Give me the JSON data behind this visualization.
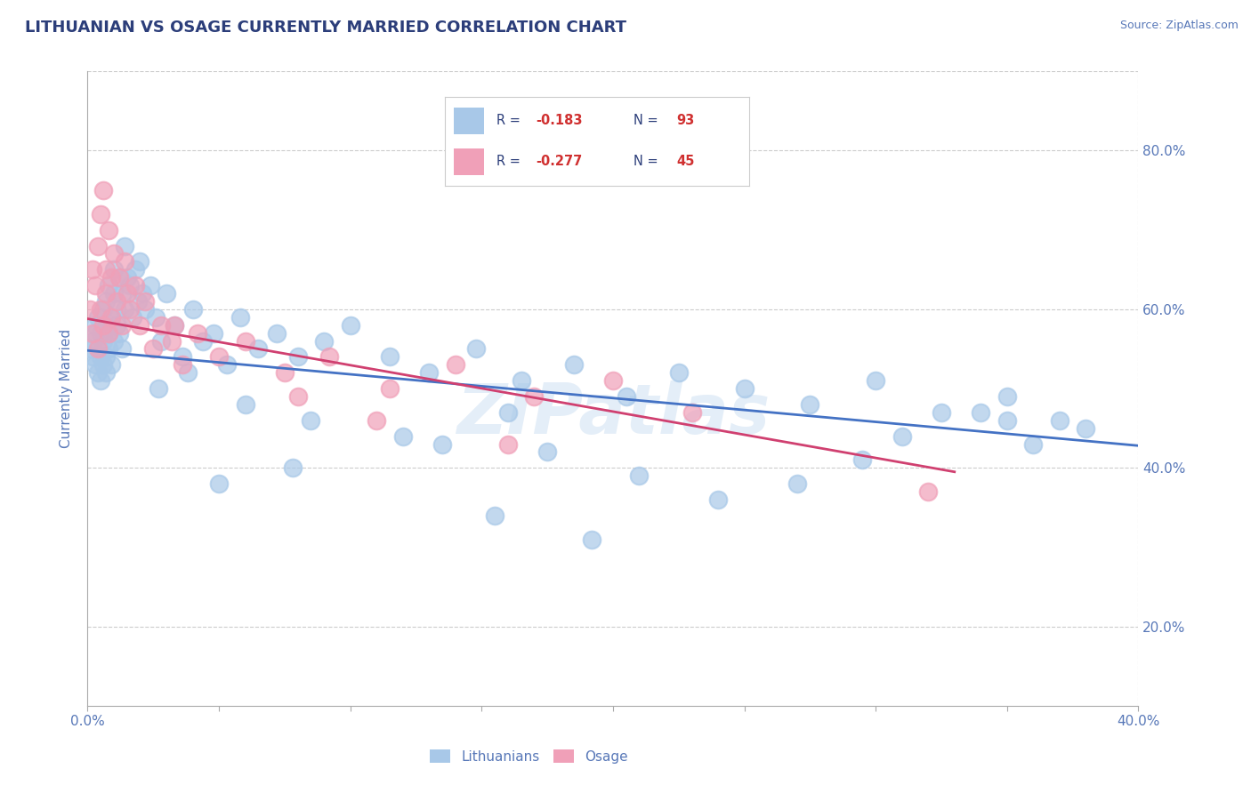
{
  "title": "LITHUANIAN VS OSAGE CURRENTLY MARRIED CORRELATION CHART",
  "source_text": "Source: ZipAtlas.com",
  "ylabel": "Currently Married",
  "xlim": [
    0.0,
    0.4
  ],
  "ylim": [
    0.1,
    0.9
  ],
  "yticks": [
    0.2,
    0.4,
    0.6,
    0.8
  ],
  "xticks": [
    0.0,
    0.05,
    0.1,
    0.15,
    0.2,
    0.25,
    0.3,
    0.35,
    0.4
  ],
  "xtick_labels": [
    "0.0%",
    "",
    "",
    "",
    "",
    "",
    "",
    "",
    "40.0%"
  ],
  "ytick_labels": [
    "20.0%",
    "40.0%",
    "60.0%",
    "80.0%"
  ],
  "blue_R": -0.183,
  "blue_N": 93,
  "pink_R": -0.277,
  "pink_N": 45,
  "blue_color": "#a8c8e8",
  "pink_color": "#f0a0b8",
  "blue_line_color": "#4472c4",
  "pink_line_color": "#d04070",
  "title_color": "#2c3e7a",
  "axis_color": "#5878b8",
  "legend_R_color": "#d03030",
  "legend_N_color": "#2c3e7a",
  "watermark": "ZIPatlas",
  "blue_x": [
    0.001,
    0.002,
    0.002,
    0.003,
    0.003,
    0.003,
    0.004,
    0.004,
    0.004,
    0.005,
    0.005,
    0.005,
    0.006,
    0.006,
    0.006,
    0.007,
    0.007,
    0.007,
    0.007,
    0.008,
    0.008,
    0.008,
    0.009,
    0.009,
    0.01,
    0.01,
    0.01,
    0.011,
    0.011,
    0.012,
    0.012,
    0.013,
    0.013,
    0.014,
    0.014,
    0.015,
    0.016,
    0.017,
    0.018,
    0.019,
    0.02,
    0.021,
    0.022,
    0.024,
    0.026,
    0.028,
    0.03,
    0.033,
    0.036,
    0.04,
    0.044,
    0.048,
    0.053,
    0.058,
    0.065,
    0.072,
    0.08,
    0.09,
    0.1,
    0.115,
    0.13,
    0.148,
    0.165,
    0.185,
    0.205,
    0.225,
    0.25,
    0.275,
    0.3,
    0.325,
    0.35,
    0.37,
    0.31,
    0.34,
    0.36,
    0.38,
    0.295,
    0.27,
    0.24,
    0.175,
    0.21,
    0.135,
    0.155,
    0.06,
    0.085,
    0.038,
    0.027,
    0.192,
    0.078,
    0.12,
    0.05,
    0.16,
    0.35
  ],
  "blue_y": [
    0.55,
    0.56,
    0.54,
    0.57,
    0.53,
    0.58,
    0.55,
    0.52,
    0.59,
    0.54,
    0.51,
    0.57,
    0.53,
    0.6,
    0.56,
    0.54,
    0.58,
    0.52,
    0.61,
    0.55,
    0.63,
    0.57,
    0.59,
    0.53,
    0.62,
    0.56,
    0.65,
    0.58,
    0.6,
    0.64,
    0.57,
    0.62,
    0.55,
    0.68,
    0.6,
    0.64,
    0.63,
    0.59,
    0.65,
    0.61,
    0.66,
    0.62,
    0.6,
    0.63,
    0.59,
    0.56,
    0.62,
    0.58,
    0.54,
    0.6,
    0.56,
    0.57,
    0.53,
    0.59,
    0.55,
    0.57,
    0.54,
    0.56,
    0.58,
    0.54,
    0.52,
    0.55,
    0.51,
    0.53,
    0.49,
    0.52,
    0.5,
    0.48,
    0.51,
    0.47,
    0.49,
    0.46,
    0.44,
    0.47,
    0.43,
    0.45,
    0.41,
    0.38,
    0.36,
    0.42,
    0.39,
    0.43,
    0.34,
    0.48,
    0.46,
    0.52,
    0.5,
    0.31,
    0.4,
    0.44,
    0.38,
    0.47,
    0.46
  ],
  "pink_x": [
    0.001,
    0.002,
    0.002,
    0.003,
    0.004,
    0.004,
    0.005,
    0.005,
    0.006,
    0.006,
    0.007,
    0.007,
    0.008,
    0.008,
    0.009,
    0.009,
    0.01,
    0.011,
    0.012,
    0.013,
    0.014,
    0.015,
    0.016,
    0.018,
    0.02,
    0.022,
    0.025,
    0.028,
    0.032,
    0.036,
    0.042,
    0.05,
    0.06,
    0.075,
    0.092,
    0.115,
    0.14,
    0.17,
    0.2,
    0.23,
    0.08,
    0.033,
    0.11,
    0.16,
    0.32
  ],
  "pink_y": [
    0.6,
    0.65,
    0.57,
    0.63,
    0.68,
    0.55,
    0.72,
    0.6,
    0.58,
    0.75,
    0.65,
    0.62,
    0.7,
    0.57,
    0.64,
    0.59,
    0.67,
    0.61,
    0.64,
    0.58,
    0.66,
    0.62,
    0.6,
    0.63,
    0.58,
    0.61,
    0.55,
    0.58,
    0.56,
    0.53,
    0.57,
    0.54,
    0.56,
    0.52,
    0.54,
    0.5,
    0.53,
    0.49,
    0.51,
    0.47,
    0.49,
    0.58,
    0.46,
    0.43,
    0.37
  ],
  "blue_trend_x": [
    0.0,
    0.4
  ],
  "blue_trend_y": [
    0.548,
    0.428
  ],
  "pink_trend_x": [
    0.0,
    0.33
  ],
  "pink_trend_y": [
    0.588,
    0.395
  ]
}
